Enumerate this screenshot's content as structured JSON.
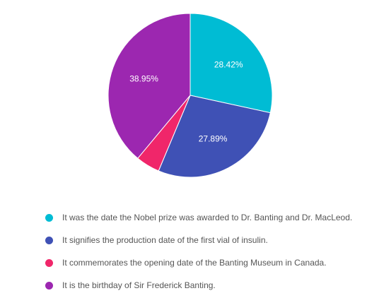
{
  "chart_data": {
    "type": "pie",
    "title": "",
    "start_angle_deg": 0,
    "direction": "clockwise",
    "slices": [
      {
        "label": "It was the date the Nobel prize was awarded to Dr. Banting and Dr. MacLeod.",
        "value": 28.42,
        "display": "28.42%",
        "color": "#00bcd4"
      },
      {
        "label": "It signifies the production date of the first vial of insulin.",
        "value": 27.89,
        "display": "27.89%",
        "color": "#3f51b5"
      },
      {
        "label": "It commemorates the opening date of the Banting Museum in Canada.",
        "value": 4.74,
        "display": "",
        "color": "#f0266a"
      },
      {
        "label": "It is the birthday of Sir Frederick Banting.",
        "value": 38.95,
        "display": "38.95%",
        "color": "#9c27b0"
      }
    ],
    "legend_position": "bottom"
  }
}
